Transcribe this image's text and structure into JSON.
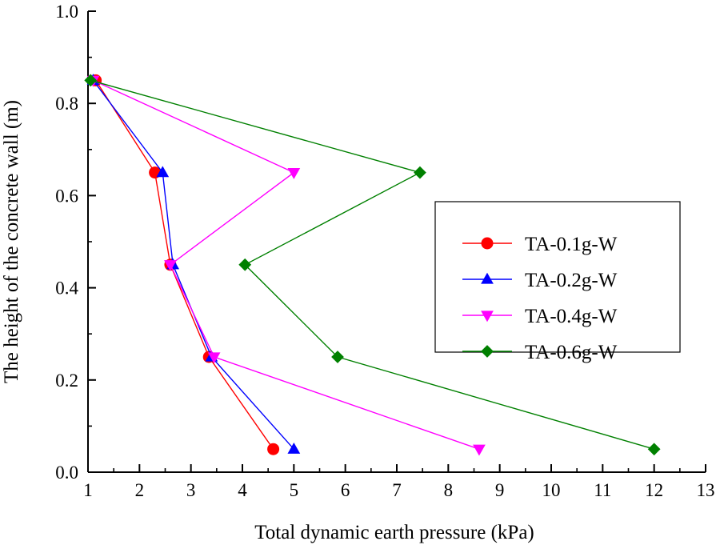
{
  "chart_data": {
    "type": "line",
    "title": "",
    "xlabel": "Total dynamic earth pressure (kPa)",
    "ylabel": "The height of the concrete wall (m)",
    "xlim": [
      1,
      13
    ],
    "ylim": [
      0.0,
      1.0
    ],
    "x_ticks": [
      "1",
      "2",
      "3",
      "4",
      "5",
      "6",
      "7",
      "8",
      "9",
      "10",
      "11",
      "12",
      "13"
    ],
    "y_ticks": [
      "0.0",
      "0.2",
      "0.4",
      "0.6",
      "0.8",
      "1.0"
    ],
    "grid": false,
    "legend_position": "right",
    "series": [
      {
        "name": "TA-0.1g-W",
        "color": "#ff0000",
        "marker": "circle",
        "x": [
          1.15,
          2.3,
          2.6,
          3.35,
          4.6
        ],
        "y": [
          0.85,
          0.65,
          0.45,
          0.25,
          0.05
        ]
      },
      {
        "name": "TA-0.2g-W",
        "color": "#0000ff",
        "marker": "triangle-up",
        "x": [
          1.1,
          2.45,
          2.65,
          3.4,
          5.0
        ],
        "y": [
          0.85,
          0.65,
          0.45,
          0.25,
          0.05
        ]
      },
      {
        "name": "TA-0.4g-W",
        "color": "#ff00ff",
        "marker": "triangle-down",
        "x": [
          1.1,
          5.0,
          2.6,
          3.45,
          8.6
        ],
        "y": [
          0.85,
          0.65,
          0.45,
          0.25,
          0.05
        ]
      },
      {
        "name": "TA-0.6g-W",
        "color": "#008000",
        "marker": "diamond",
        "x": [
          1.05,
          7.45,
          4.05,
          5.85,
          12.0
        ],
        "y": [
          0.85,
          0.65,
          0.45,
          0.25,
          0.05
        ]
      }
    ]
  }
}
